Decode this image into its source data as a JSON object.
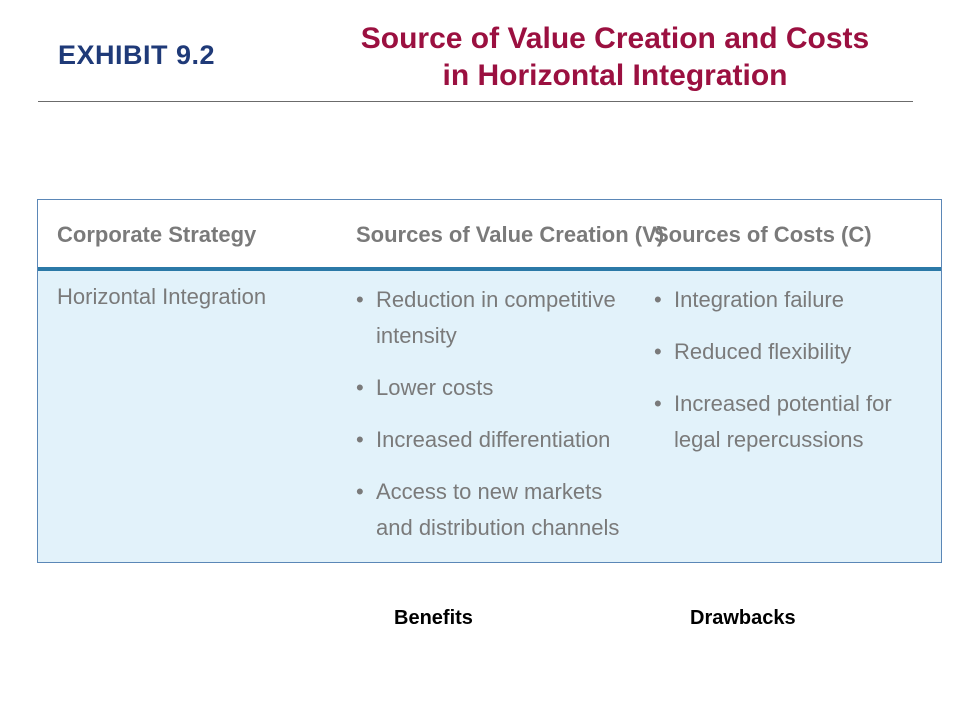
{
  "slide": {
    "exhibit_label": "EXHIBIT 9.2",
    "title_line1": "Source of Value Creation and Costs",
    "title_line2": "in Horizontal Integration"
  },
  "exhibit": {
    "headers": {
      "strategy": "Corporate Strategy",
      "value": "Sources of Value Creation (V)",
      "costs": "Sources of Costs (C)"
    },
    "strategy": "Horizontal Integration",
    "value_items": [
      "Reduction in competitive intensity",
      "Lower costs",
      "Increased differentiation",
      "Access to new markets and distribution channels"
    ],
    "cost_items": [
      "Integration failure",
      "Reduced flexibility",
      "Increased potential for legal repercussions"
    ]
  },
  "footer": {
    "benefits": "Benefits",
    "drawbacks": "Drawbacks"
  }
}
